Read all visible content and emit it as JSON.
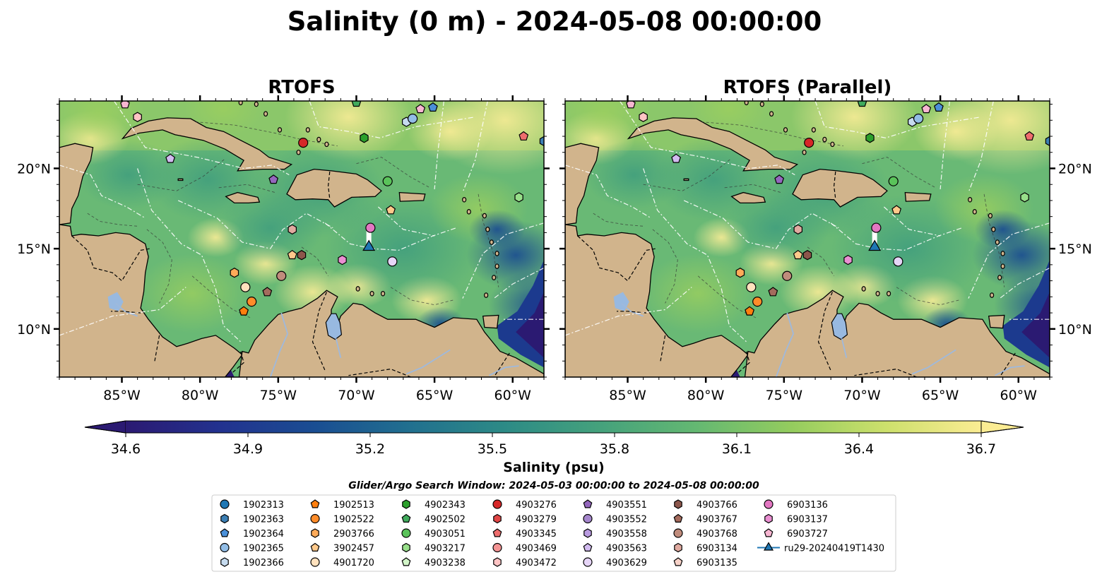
{
  "figure": {
    "title": "Salinity (0 m) - 2024-05-08 00:00:00",
    "search_window": "Glider/Argo Search Window: 2024-05-03 00:00:00 to 2024-05-08 00:00:00"
  },
  "panels": [
    {
      "id": "rtofs",
      "title": "RTOFS"
    },
    {
      "id": "rtofs-parallel",
      "title": "RTOFS (Parallel)"
    }
  ],
  "map": {
    "lon_range": [
      -89,
      -58
    ],
    "lat_range": [
      7,
      24.2
    ],
    "lon_ticks": [
      -85,
      -80,
      -75,
      -70,
      -65,
      -60
    ],
    "lon_labels": [
      "85°W",
      "80°W",
      "75°W",
      "70°W",
      "65°W",
      "60°W"
    ],
    "lat_ticks": [
      10,
      15,
      20
    ],
    "lat_labels": [
      "10°N",
      "15°N",
      "20°N"
    ],
    "colors": {
      "land": "#d1b48c",
      "lake": "#98b9e0",
      "deep": "#2b1a72"
    }
  },
  "colorbar": {
    "vmin": 34.6,
    "vmax": 36.7,
    "ticks": [
      "34.6",
      "34.9",
      "35.2",
      "35.5",
      "35.8",
      "36.1",
      "36.4",
      "36.7"
    ],
    "label": "Salinity (psu)",
    "stops": [
      "#2b1a72",
      "#22328f",
      "#1a4e92",
      "#21708f",
      "#2d8b86",
      "#45a27c",
      "#64b872",
      "#94cc5e",
      "#cde06c",
      "#fbec93"
    ]
  },
  "floats": [
    {
      "id": "1902313",
      "marker": "circle",
      "color": "#1f77b4"
    },
    {
      "id": "1902363",
      "marker": "hexagon",
      "color": "#3c7fb4"
    },
    {
      "id": "1902364",
      "marker": "pentagon",
      "color": "#4a90d9"
    },
    {
      "id": "1902365",
      "marker": "circle",
      "color": "#92bde6"
    },
    {
      "id": "1902366",
      "marker": "hexagon",
      "color": "#c6dbef"
    },
    {
      "id": "1902513",
      "marker": "pentagon",
      "color": "#ff7f0e"
    },
    {
      "id": "1902522",
      "marker": "circle",
      "color": "#ff8c2a"
    },
    {
      "id": "2903766",
      "marker": "hexagon",
      "color": "#ffab59"
    },
    {
      "id": "3902457",
      "marker": "pentagon",
      "color": "#ffc98b"
    },
    {
      "id": "4901720",
      "marker": "circle",
      "color": "#ffe1bd"
    },
    {
      "id": "4902343",
      "marker": "hexagon",
      "color": "#2ca02c"
    },
    {
      "id": "4902502",
      "marker": "pentagon",
      "color": "#41ab5d"
    },
    {
      "id": "4903051",
      "marker": "circle",
      "color": "#5ac35a"
    },
    {
      "id": "4903217",
      "marker": "hexagon",
      "color": "#98df8a"
    },
    {
      "id": "4903238",
      "marker": "pentagon",
      "color": "#d2f5c8"
    },
    {
      "id": "4903276",
      "marker": "circle",
      "color": "#d62728"
    },
    {
      "id": "4903279",
      "marker": "hexagon",
      "color": "#e04646"
    },
    {
      "id": "4903345",
      "marker": "pentagon",
      "color": "#ee6d6d"
    },
    {
      "id": "4903469",
      "marker": "circle",
      "color": "#f49494"
    },
    {
      "id": "4903472",
      "marker": "hexagon",
      "color": "#ffc4c4"
    },
    {
      "id": "4903551",
      "marker": "pentagon",
      "color": "#9467bd"
    },
    {
      "id": "4903552",
      "marker": "circle",
      "color": "#a586cc"
    },
    {
      "id": "4903558",
      "marker": "hexagon",
      "color": "#b99be0"
    },
    {
      "id": "4903563",
      "marker": "pentagon",
      "color": "#d2bbf0"
    },
    {
      "id": "4903629",
      "marker": "circle",
      "color": "#e6d5f7"
    },
    {
      "id": "4903766",
      "marker": "hexagon",
      "color": "#8c564b"
    },
    {
      "id": "4903767",
      "marker": "pentagon",
      "color": "#a46b5d"
    },
    {
      "id": "4903768",
      "marker": "circle",
      "color": "#c08c7c"
    },
    {
      "id": "6903134",
      "marker": "hexagon",
      "color": "#e0aaa0"
    },
    {
      "id": "6903135",
      "marker": "pentagon",
      "color": "#f7d2c8"
    },
    {
      "id": "6903136",
      "marker": "circle",
      "color": "#e377c2"
    },
    {
      "id": "6903137",
      "marker": "hexagon",
      "color": "#ea8fd2"
    },
    {
      "id": "6903727",
      "marker": "pentagon",
      "color": "#f7b6d2"
    },
    {
      "id": "ru29-20240419T1430",
      "marker": "triangle",
      "color": "#1f77b4"
    }
  ],
  "points": [
    {
      "float": "6903727",
      "lon": -84.8,
      "lat": 24.0
    },
    {
      "float": "4903472",
      "lon": -84.0,
      "lat": 23.2
    },
    {
      "float": "4903563",
      "lon": -81.9,
      "lat": 20.6
    },
    {
      "float": "4902502",
      "lon": -70.0,
      "lat": 24.1
    },
    {
      "float": "1902366",
      "lon": -66.8,
      "lat": 22.9
    },
    {
      "float": "1902365",
      "lon": -66.4,
      "lat": 23.1
    },
    {
      "float": "6903727",
      "lon": -65.9,
      "lat": 23.7
    },
    {
      "float": "1902364",
      "lon": -65.1,
      "lat": 23.8
    },
    {
      "float": "4902343",
      "lon": -69.5,
      "lat": 21.9
    },
    {
      "float": "4903276",
      "lon": -73.4,
      "lat": 21.6
    },
    {
      "float": "4903345",
      "lon": -59.3,
      "lat": 22.0
    },
    {
      "float": "1902363",
      "lon": -58.0,
      "lat": 21.7
    },
    {
      "float": "4903551",
      "lon": -75.3,
      "lat": 19.3
    },
    {
      "float": "4903051",
      "lon": -68.0,
      "lat": 19.2
    },
    {
      "float": "4903217",
      "lon": -59.6,
      "lat": 18.2
    },
    {
      "float": "3902457",
      "lon": -67.8,
      "lat": 17.4
    },
    {
      "float": "6903134",
      "lon": -74.1,
      "lat": 16.2
    },
    {
      "float": "6903136",
      "lon": -69.1,
      "lat": 16.3
    },
    {
      "float": "3902457",
      "lon": -74.1,
      "lat": 14.6
    },
    {
      "float": "4903766",
      "lon": -73.5,
      "lat": 14.6
    },
    {
      "float": "6903137",
      "lon": -70.9,
      "lat": 14.3
    },
    {
      "float": "4903629",
      "lon": -67.7,
      "lat": 14.2
    },
    {
      "float": "2903766",
      "lon": -77.8,
      "lat": 13.5
    },
    {
      "float": "4903768",
      "lon": -74.8,
      "lat": 13.3
    },
    {
      "float": "4901720",
      "lon": -77.1,
      "lat": 12.6
    },
    {
      "float": "4903767",
      "lon": -75.7,
      "lat": 12.3
    },
    {
      "float": "1902522",
      "lon": -76.7,
      "lat": 11.7
    },
    {
      "float": "1902513",
      "lon": -77.2,
      "lat": 11.1
    }
  ],
  "glider": {
    "float": "ru29-20240419T1430",
    "lon": -69.2,
    "lat": 15.1,
    "track_top_lat": 16.5
  }
}
